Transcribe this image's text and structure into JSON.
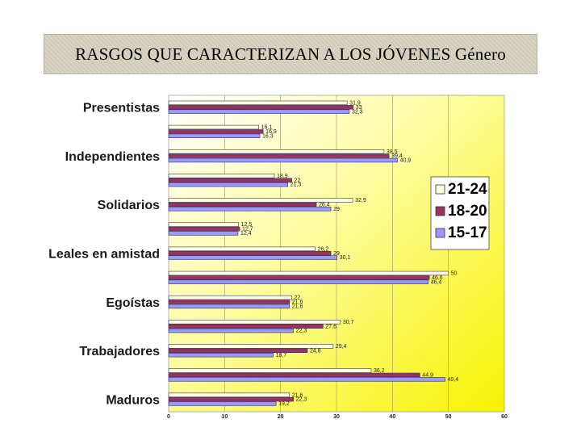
{
  "title": "RASGOS QUE CARACTERIZAN A LOS JÓVENES Género",
  "chart_data": {
    "type": "bar",
    "orientation": "horizontal",
    "title": "RASGOS QUE CARACTERIZAN A LOS JÓVENES Género",
    "xlim": [
      0,
      60
    ],
    "xticks": [
      "0",
      "10",
      "20",
      "30",
      "40",
      "50",
      "60"
    ],
    "grid": true,
    "legend_position": "right",
    "categories": [
      "Presentistas",
      "",
      "Independientes",
      "",
      "Solidarios",
      "",
      "Leales en amistad",
      "",
      "Egoístas",
      "",
      "Trabajadores",
      "",
      "Maduros"
    ],
    "series": [
      {
        "name": "21-24",
        "color": "#ffffe0",
        "values": [
          31.9,
          16.1,
          38.5,
          18.9,
          32.9,
          12.5,
          26.2,
          50,
          22,
          30.7,
          29.4,
          36.2,
          21.6
        ],
        "labels": [
          "31,9",
          "16,1",
          "38,5",
          "18,9",
          "32,9",
          "12,5",
          "26,2",
          "50",
          "22",
          "30,7",
          "29,4",
          "36,2",
          "21,6"
        ]
      },
      {
        "name": "18-20",
        "color": "#99335e",
        "values": [
          33,
          16.9,
          39.4,
          22,
          26.4,
          12.7,
          29,
          46.6,
          21.6,
          27.6,
          24.8,
          44.9,
          22.3
        ],
        "labels": [
          "33",
          "16,9",
          "39,4",
          "22",
          "26,4",
          "12,7",
          "29",
          "46,6",
          "21,6",
          "27,6",
          "24,8",
          "44,9",
          "22,3"
        ]
      },
      {
        "name": "15-17",
        "color": "#9999ff",
        "values": [
          32.3,
          16.3,
          40.9,
          21.3,
          29,
          12.4,
          30.1,
          46.4,
          21.6,
          22.3,
          18.7,
          49.4,
          19.2
        ],
        "labels": [
          "32,3",
          "16,3",
          "40,9",
          "21,3",
          "29",
          "12,4",
          "30,1",
          "46,4",
          "21,6",
          "22,3",
          "18,7",
          "49,4",
          "19,2"
        ]
      }
    ]
  }
}
